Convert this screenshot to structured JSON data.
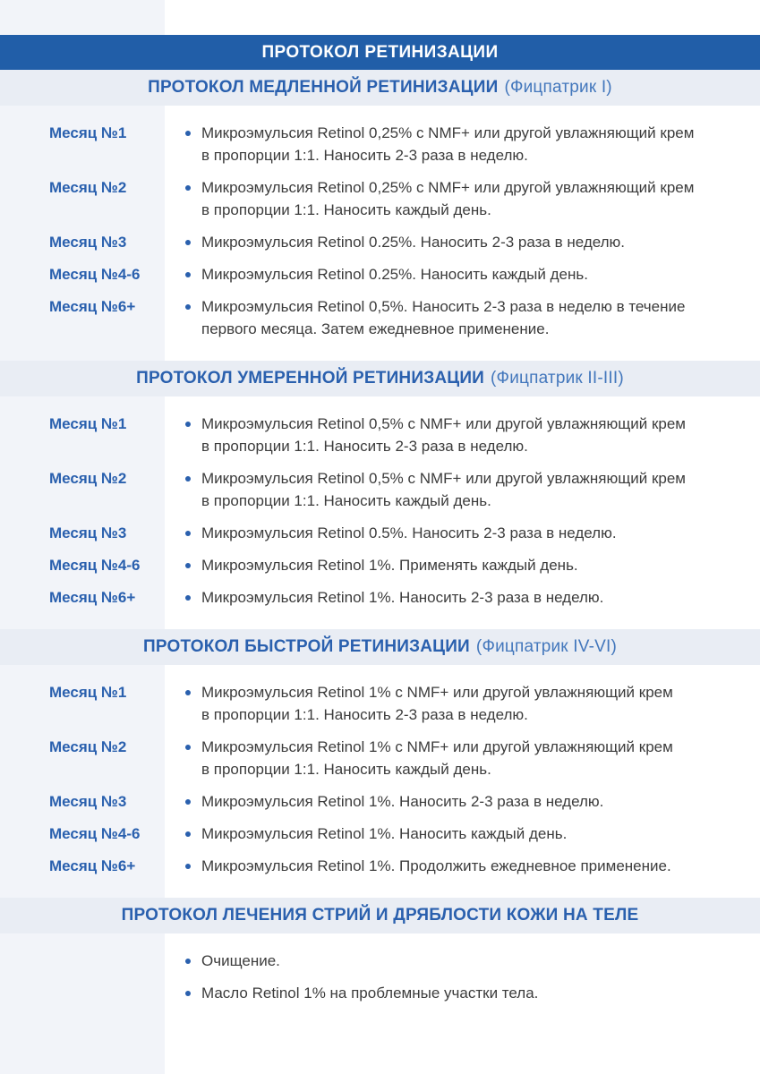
{
  "page": {
    "title": "ПРОТОКОЛ РЕТИНИЗАЦИИ"
  },
  "colors": {
    "header_bar": "#215EA8",
    "header_text": "#FFFFFF",
    "section_bar": "#E9EDF4",
    "accent_blue": "#2A60AE",
    "subtitle_blue": "#4377BC",
    "body_text": "#3C3C3C",
    "left_strip": "#F2F4F9"
  },
  "sections": [
    {
      "title": "ПРОТОКОЛ МЕДЛЕННОЙ РЕТИНИЗАЦИИ",
      "subtitle": "(Фицпатрик I)",
      "rows": [
        {
          "label": "Месяц №1",
          "text": "Микроэмульсия Retinol 0,25% с NMF+ или другой увлажняющий крем\nв пропорции 1:1. Наносить 2-3 раза в неделю."
        },
        {
          "label": "Месяц №2",
          "text": "Микроэмульсия Retinol 0,25% с NMF+ или другой увлажняющий крем\nв пропорции 1:1. Наносить каждый день."
        },
        {
          "label": "Месяц №3",
          "text": "Микроэмульсия Retinol 0.25%. Наносить 2-3 раза в неделю."
        },
        {
          "label": "Месяц №4-6",
          "text": "Микроэмульсия Retinol 0.25%. Наносить каждый день."
        },
        {
          "label": "Месяц №6+",
          "text": "Микроэмульсия Retinol 0,5%. Наносить 2-3 раза в неделю в течение\nпервого месяца. Затем ежедневное применение."
        }
      ]
    },
    {
      "title": "ПРОТОКОЛ УМЕРЕННОЙ РЕТИНИЗАЦИИ",
      "subtitle": "(Фицпатрик II-III)",
      "rows": [
        {
          "label": "Месяц №1",
          "text": "Микроэмульсия Retinol 0,5% с NMF+ или другой увлажняющий крем\nв пропорции 1:1. Наносить 2-3 раза в неделю."
        },
        {
          "label": "Месяц №2",
          "text": "Микроэмульсия Retinol 0,5% с NMF+ или другой увлажняющий крем\nв пропорции 1:1. Наносить каждый день."
        },
        {
          "label": "Месяц №3",
          "text": "Микроэмульсия Retinol 0.5%. Наносить 2-3 раза в неделю."
        },
        {
          "label": "Месяц №4-6",
          "text": "Микроэмульсия Retinol 1%. Применять каждый день."
        },
        {
          "label": "Месяц №6+",
          "text": "Микроэмульсия Retinol 1%. Наносить 2-3 раза в неделю."
        }
      ]
    },
    {
      "title": "ПРОТОКОЛ БЫСТРОЙ РЕТИНИЗАЦИИ",
      "subtitle": "(Фицпатрик IV-VI)",
      "rows": [
        {
          "label": "Месяц №1",
          "text": "Микроэмульсия Retinol 1% с NMF+ или другой увлажняющий крем\nв пропорции 1:1. Наносить 2-3 раза в неделю."
        },
        {
          "label": "Месяц №2",
          "text": "Микроэмульсия Retinol 1% с NMF+ или другой увлажняющий крем\nв пропорции 1:1. Наносить каждый день."
        },
        {
          "label": "Месяц №3",
          "text": "Микроэмульсия Retinol 1%. Наносить 2-3 раза в неделю."
        },
        {
          "label": "Месяц №4-6",
          "text": "Микроэмульсия Retinol 1%. Наносить каждый день."
        },
        {
          "label": "Месяц №6+",
          "text": "Микроэмульсия Retinol 1%. Продолжить ежедневное применение."
        }
      ]
    },
    {
      "title": "ПРОТОКОЛ ЛЕЧЕНИЯ СТРИЙ И ДРЯБЛОСТИ КОЖИ НА ТЕЛЕ",
      "subtitle": "",
      "rows": [
        {
          "label": "",
          "text": "Очищение."
        },
        {
          "label": "",
          "text": "Масло Retinol 1% на проблемные участки тела."
        }
      ]
    }
  ]
}
